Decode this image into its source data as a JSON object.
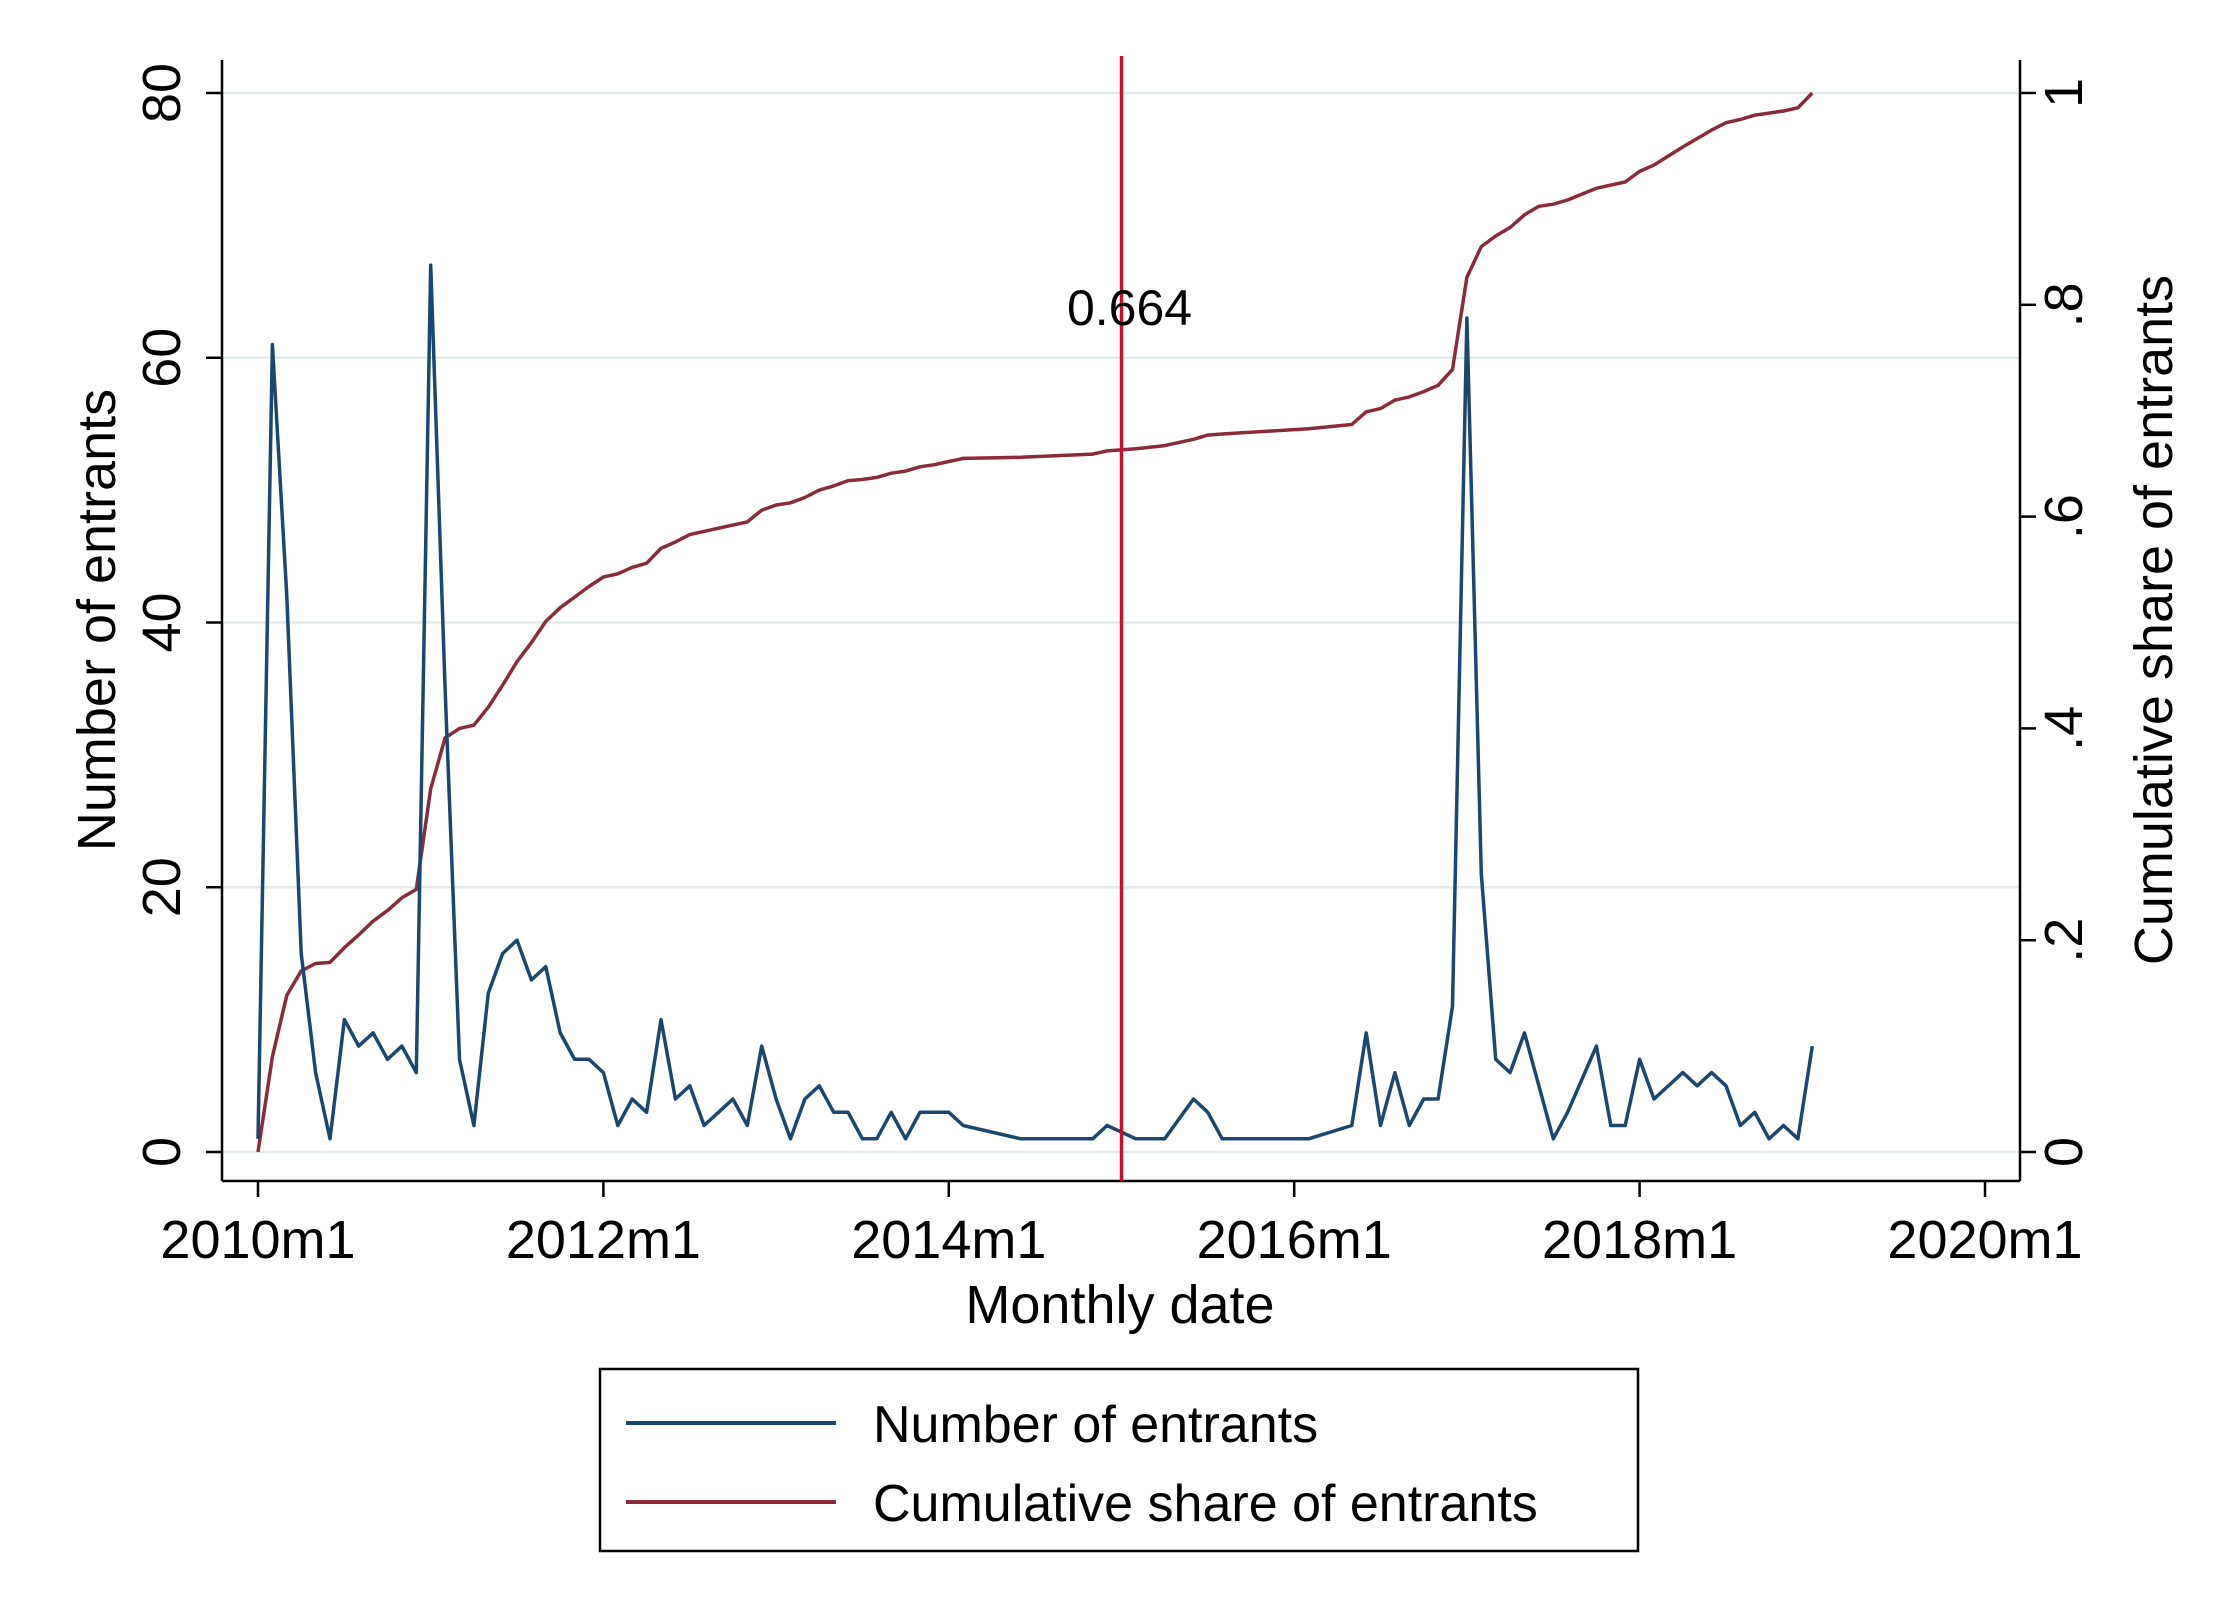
{
  "chart_data": {
    "type": "line",
    "xlabel": "Monthly date",
    "ylabel_left": "Number of entrants",
    "ylabel_right": "Cumulative share of entrants",
    "x_ticks": [
      "2010m1",
      "2012m1",
      "2014m1",
      "2016m1",
      "2018m1",
      "2020m1"
    ],
    "y_left_ticks": [
      "0",
      "20",
      "40",
      "60",
      "80"
    ],
    "y_right_ticks": [
      "0",
      ".2",
      ".4",
      ".6",
      ".8",
      "1"
    ],
    "ylim_left": [
      0,
      80
    ],
    "ylim_right": [
      0,
      1
    ],
    "xlim": [
      "2010m1",
      "2020m1"
    ],
    "grid": "horizontal",
    "legend_position": "bottom",
    "reference_line": {
      "x": "2015m1",
      "label": "0.664",
      "color": "#c8102e"
    },
    "series": [
      {
        "name": "Number of entrants",
        "axis": "left",
        "color": "#1a476f",
        "points": [
          [
            "2010m1",
            1
          ],
          [
            "2010m2",
            61
          ],
          [
            "2010m3",
            42
          ],
          [
            "2010m4",
            15
          ],
          [
            "2010m5",
            6
          ],
          [
            "2010m6",
            1
          ],
          [
            "2010m7",
            10
          ],
          [
            "2010m8",
            8
          ],
          [
            "2010m9",
            9
          ],
          [
            "2010m10",
            7
          ],
          [
            "2010m11",
            8
          ],
          [
            "2010m12",
            6
          ],
          [
            "2011m1",
            67
          ],
          [
            "2011m2",
            35
          ],
          [
            "2011m3",
            7
          ],
          [
            "2011m4",
            2
          ],
          [
            "2011m5",
            12
          ],
          [
            "2011m6",
            15
          ],
          [
            "2011m7",
            16
          ],
          [
            "2011m8",
            13
          ],
          [
            "2011m9",
            14
          ],
          [
            "2011m10",
            9
          ],
          [
            "2011m11",
            7
          ],
          [
            "2011m12",
            7
          ],
          [
            "2012m1",
            6
          ],
          [
            "2012m2",
            2
          ],
          [
            "2012m3",
            4
          ],
          [
            "2012m4",
            3
          ],
          [
            "2012m5",
            10
          ],
          [
            "2012m6",
            4
          ],
          [
            "2012m7",
            5
          ],
          [
            "2012m8",
            2
          ],
          [
            "2012m9",
            3
          ],
          [
            "2012m10",
            4
          ],
          [
            "2012m11",
            2
          ],
          [
            "2012m12",
            8
          ],
          [
            "2013m1",
            4
          ],
          [
            "2013m2",
            1
          ],
          [
            "2013m3",
            4
          ],
          [
            "2013m4",
            5
          ],
          [
            "2013m5",
            3
          ],
          [
            "2013m6",
            3
          ],
          [
            "2013m7",
            1
          ],
          [
            "2013m8",
            1
          ],
          [
            "2013m9",
            3
          ],
          [
            "2013m10",
            1
          ],
          [
            "2013m11",
            3
          ],
          [
            "2013m12",
            3
          ],
          [
            "2014m1",
            3
          ],
          [
            "2014m2",
            2
          ],
          [
            "2014m6",
            1
          ],
          [
            "2014m11",
            1
          ],
          [
            "2014m12",
            2
          ],
          [
            "2015m2",
            1
          ],
          [
            "2015m4",
            1
          ],
          [
            "2015m6",
            4
          ],
          [
            "2015m7",
            3
          ],
          [
            "2015m8",
            1
          ],
          [
            "2016m2",
            1
          ],
          [
            "2016m5",
            2
          ],
          [
            "2016m6",
            9
          ],
          [
            "2016m7",
            2
          ],
          [
            "2016m8",
            6
          ],
          [
            "2016m9",
            2
          ],
          [
            "2016m10",
            4
          ],
          [
            "2016m11",
            4
          ],
          [
            "2016m12",
            11
          ],
          [
            "2017m1",
            63
          ],
          [
            "2017m2",
            21
          ],
          [
            "2017m3",
            7
          ],
          [
            "2017m4",
            6
          ],
          [
            "2017m5",
            9
          ],
          [
            "2017m7",
            1
          ],
          [
            "2017m8",
            3
          ],
          [
            "2017m10",
            8
          ],
          [
            "2017m11",
            2
          ],
          [
            "2017m12",
            2
          ],
          [
            "2018m1",
            7
          ],
          [
            "2018m2",
            4
          ],
          [
            "2018m4",
            6
          ],
          [
            "2018m5",
            5
          ],
          [
            "2018m6",
            6
          ],
          [
            "2018m7",
            5
          ],
          [
            "2018m8",
            2
          ],
          [
            "2018m9",
            3
          ],
          [
            "2018m10",
            1
          ],
          [
            "2018m11",
            2
          ],
          [
            "2018m12",
            1
          ],
          [
            "2019m1",
            8
          ]
        ]
      },
      {
        "name": "Cumulative share of entrants",
        "axis": "right",
        "color": "#8b2b3a",
        "points": [
          [
            "2010m1",
            0.0
          ],
          [
            "2010m2",
            0.09
          ],
          [
            "2010m3",
            0.148
          ],
          [
            "2010m4",
            0.171
          ],
          [
            "2010m5",
            0.178
          ],
          [
            "2010m6",
            0.179
          ],
          [
            "2010m7",
            0.193
          ],
          [
            "2010m8",
            0.205
          ],
          [
            "2010m9",
            0.218
          ],
          [
            "2010m10",
            0.228
          ],
          [
            "2010m11",
            0.24
          ],
          [
            "2010m12",
            0.248
          ],
          [
            "2011m1",
            0.343
          ],
          [
            "2011m2",
            0.391
          ],
          [
            "2011m3",
            0.4
          ],
          [
            "2011m4",
            0.403
          ],
          [
            "2011m5",
            0.42
          ],
          [
            "2011m6",
            0.441
          ],
          [
            "2011m7",
            0.463
          ],
          [
            "2011m8",
            0.481
          ],
          [
            "2011m9",
            0.501
          ],
          [
            "2011m10",
            0.514
          ],
          [
            "2011m11",
            0.524
          ],
          [
            "2011m12",
            0.534
          ],
          [
            "2012m1",
            0.543
          ],
          [
            "2012m2",
            0.546
          ],
          [
            "2012m3",
            0.552
          ],
          [
            "2012m4",
            0.556
          ],
          [
            "2012m5",
            0.57
          ],
          [
            "2012m6",
            0.576
          ],
          [
            "2012m7",
            0.583
          ],
          [
            "2012m8",
            0.586
          ],
          [
            "2012m9",
            0.589
          ],
          [
            "2012m10",
            0.592
          ],
          [
            "2012m11",
            0.595
          ],
          [
            "2012m12",
            0.606
          ],
          [
            "2013m1",
            0.611
          ],
          [
            "2013m2",
            0.613
          ],
          [
            "2013m3",
            0.618
          ],
          [
            "2013m4",
            0.625
          ],
          [
            "2013m5",
            0.629
          ],
          [
            "2013m6",
            0.634
          ],
          [
            "2013m7",
            0.635
          ],
          [
            "2013m8",
            0.637
          ],
          [
            "2013m9",
            0.641
          ],
          [
            "2013m10",
            0.643
          ],
          [
            "2013m11",
            0.647
          ],
          [
            "2013m12",
            0.649
          ],
          [
            "2014m1",
            0.652
          ],
          [
            "2014m2",
            0.655
          ],
          [
            "2014m6",
            0.656
          ],
          [
            "2014m11",
            0.659
          ],
          [
            "2014m12",
            0.662
          ],
          [
            "2015m2",
            0.664
          ],
          [
            "2015m4",
            0.667
          ],
          [
            "2015m6",
            0.673
          ],
          [
            "2015m7",
            0.677
          ],
          [
            "2015m8",
            0.678
          ],
          [
            "2016m2",
            0.683
          ],
          [
            "2016m5",
            0.687
          ],
          [
            "2016m6",
            0.699
          ],
          [
            "2016m7",
            0.702
          ],
          [
            "2016m8",
            0.71
          ],
          [
            "2016m9",
            0.713
          ],
          [
            "2016m10",
            0.718
          ],
          [
            "2016m11",
            0.724
          ],
          [
            "2016m12",
            0.739
          ],
          [
            "2017m1",
            0.826
          ],
          [
            "2017m2",
            0.855
          ],
          [
            "2017m3",
            0.865
          ],
          [
            "2017m4",
            0.873
          ],
          [
            "2017m5",
            0.885
          ],
          [
            "2017m6",
            0.893
          ],
          [
            "2017m7",
            0.895
          ],
          [
            "2017m8",
            0.899
          ],
          [
            "2017m10",
            0.91
          ],
          [
            "2017m11",
            0.913
          ],
          [
            "2017m12",
            0.916
          ],
          [
            "2018m1",
            0.926
          ],
          [
            "2018m2",
            0.932
          ],
          [
            "2018m4",
            0.949
          ],
          [
            "2018m5",
            0.957
          ],
          [
            "2018m6",
            0.965
          ],
          [
            "2018m7",
            0.972
          ],
          [
            "2018m8",
            0.975
          ],
          [
            "2018m9",
            0.979
          ],
          [
            "2018m10",
            0.981
          ],
          [
            "2018m11",
            0.983
          ],
          [
            "2018m12",
            0.986
          ],
          [
            "2019m1",
            1.0
          ]
        ]
      }
    ]
  }
}
